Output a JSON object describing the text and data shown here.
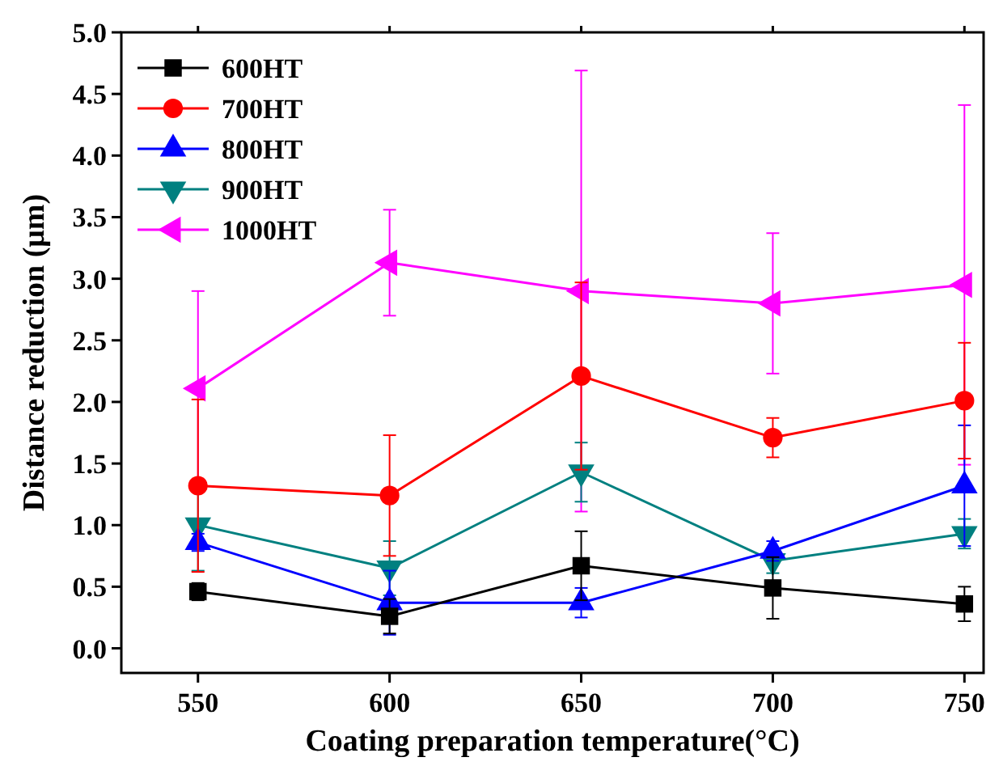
{
  "chart_data": {
    "type": "line",
    "xlabel": "Coating preparation temperature(°C)",
    "ylabel": "Distance reduction (μm)",
    "x": [
      550,
      600,
      650,
      700,
      750
    ],
    "xlim": [
      530,
      755
    ],
    "xticks": [
      550,
      600,
      650,
      700,
      750
    ],
    "ylim": [
      -0.2,
      5
    ],
    "yticks": [
      {
        "value": 0,
        "label": "0.0"
      },
      {
        "value": 0.5,
        "label": "0.5"
      },
      {
        "value": 1,
        "label": "1.0"
      },
      {
        "value": 1.5,
        "label": "1.5"
      },
      {
        "value": 2,
        "label": "2.0"
      },
      {
        "value": 2.5,
        "label": "2.5"
      },
      {
        "value": 3,
        "label": "3.0"
      },
      {
        "value": 3.5,
        "label": "3.5"
      },
      {
        "value": 4,
        "label": "4.0"
      },
      {
        "value": 4.5,
        "label": "4.5"
      },
      {
        "value": 5,
        "label": "5.0"
      }
    ],
    "grid": false,
    "legend": "top left",
    "line_style": "solid",
    "series": [
      {
        "name": "600HT",
        "color": "#000000",
        "marker": "square",
        "values": [
          0.46,
          0.26,
          0.67,
          0.49,
          0.36
        ],
        "errors": [
          0.07,
          0.14,
          0.28,
          0.25,
          0.14
        ]
      },
      {
        "name": "700HT",
        "color": "#ff0000",
        "marker": "circle",
        "values": [
          1.32,
          1.24,
          2.21,
          1.71,
          2.01
        ],
        "errors": [
          0.7,
          0.49,
          0.76,
          0.16,
          0.47
        ]
      },
      {
        "name": "800HT",
        "color": "#0000ff",
        "marker": "triangle",
        "values": [
          0.86,
          0.37,
          0.37,
          0.79,
          1.32
        ],
        "errors": [
          0.07,
          0.26,
          0.12,
          0.08,
          0.49
        ]
      },
      {
        "name": "900HT",
        "color": "#008080",
        "marker": "triangle-down",
        "values": [
          1.0,
          0.65,
          1.43,
          0.71,
          0.93
        ],
        "errors": [
          0.37,
          0.22,
          0.24,
          0.1,
          0.12
        ]
      },
      {
        "name": "1000HT",
        "color": "#ff00ff",
        "marker": "triangle-left",
        "values": [
          2.11,
          3.13,
          2.9,
          2.8,
          2.95
        ],
        "errors": [
          0.79,
          0.43,
          1.79,
          0.57,
          1.46
        ]
      }
    ]
  }
}
